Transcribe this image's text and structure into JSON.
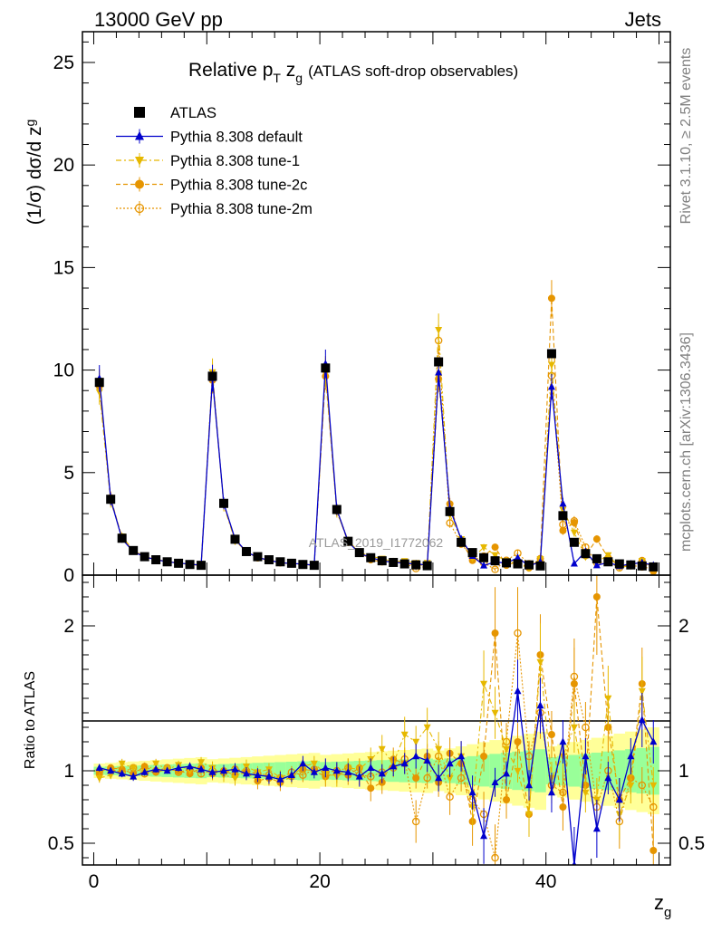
{
  "header": {
    "energy": "13000 GeV pp",
    "category": "Jets"
  },
  "plot": {
    "title_main": "Relative p",
    "title_sub1": "T",
    "title_mid": " z",
    "title_sub2": "g",
    "title_suffix": "(ATLAS soft-drop observables)",
    "ylabel_top": "(1/σ) dσ/d z",
    "ylabel_top_sub": "g",
    "ylabel_bottom": "Ratio to ATLAS",
    "xlabel": "z",
    "xlabel_sub": "g",
    "watermark": "ATLAS_2019_I1772062",
    "side_right_top": "Rivet 3.1.10, ≥ 2.5M events",
    "side_right_bottom": "mcplots.cern.ch [arXiv:1306.3436]"
  },
  "legend": [
    {
      "label": "ATLAS",
      "color": "#000000",
      "marker": "square"
    },
    {
      "label": "Pythia 8.308 default",
      "color": "#0000cc",
      "marker": "triangle-up"
    },
    {
      "label": "Pythia 8.308 tune-1",
      "color": "#e6b800",
      "marker": "triangle-down"
    },
    {
      "label": "Pythia 8.308 tune-2c",
      "color": "#e69500",
      "marker": "circle"
    },
    {
      "label": "Pythia 8.308 tune-2m",
      "color": "#e69500",
      "marker": "circle-open"
    }
  ],
  "chart_data": {
    "type": "scatter",
    "x": [
      0.5,
      1.5,
      2.5,
      3.5,
      4.5,
      5.5,
      6.5,
      7.5,
      8.5,
      9.5,
      10.5,
      11.5,
      12.5,
      13.5,
      14.5,
      15.5,
      16.5,
      17.5,
      18.5,
      19.5,
      20.5,
      21.5,
      22.5,
      23.5,
      24.5,
      25.5,
      26.5,
      27.5,
      28.5,
      29.5,
      30.5,
      31.5,
      32.5,
      33.5,
      34.5,
      35.5,
      36.5,
      37.5,
      38.5,
      39.5,
      40.5,
      41.5,
      42.5,
      43.5,
      44.5,
      45.5,
      46.5,
      47.5,
      48.5,
      49.5
    ],
    "xlim": [
      -1,
      51
    ],
    "top_ylim": [
      0,
      26.5
    ],
    "bottom_ylim": [
      0.35,
      2.35
    ],
    "xticks": [
      0,
      20,
      40
    ],
    "top_yticks": [
      0,
      5,
      10,
      15,
      20,
      25
    ],
    "bottom_yticks": [
      0.5,
      1,
      2
    ],
    "series": [
      {
        "name": "ATLAS",
        "values": [
          9.4,
          3.7,
          1.8,
          1.2,
          0.9,
          0.75,
          0.65,
          0.58,
          0.52,
          0.48,
          9.7,
          3.5,
          1.75,
          1.15,
          0.9,
          0.75,
          0.65,
          0.58,
          0.52,
          0.48,
          10.1,
          3.2,
          1.65,
          1.1,
          0.85,
          0.7,
          0.62,
          0.55,
          0.5,
          0.46,
          10.4,
          3.1,
          1.6,
          1.1,
          0.85,
          0.7,
          0.6,
          0.55,
          0.5,
          0.45,
          10.8,
          2.9,
          1.6,
          1.05,
          0.8,
          0.65,
          0.55,
          0.5,
          0.45,
          0.4
        ]
      },
      {
        "name": "Pythia 8.308 default",
        "ratio": [
          1.02,
          1.0,
          0.98,
          0.96,
          0.99,
          1.01,
          1.0,
          1.02,
          1.03,
          1.01,
          0.99,
          1.0,
          1.01,
          0.98,
          0.97,
          0.96,
          0.94,
          0.97,
          1.05,
          0.99,
          1.02,
          1.0,
          0.99,
          0.96,
          1.02,
          0.98,
          1.03,
          1.05,
          1.1,
          1.07,
          0.95,
          1.05,
          1.1,
          0.85,
          0.55,
          0.92,
          0.98,
          1.55,
          0.9,
          1.45,
          0.85,
          1.2,
          0.35,
          1.1,
          0.6,
          0.95,
          0.8,
          1.1,
          1.35,
          1.2
        ]
      },
      {
        "name": "Pythia 8.308 tune-1",
        "ratio": [
          0.95,
          0.97,
          1.05,
          1.02,
          0.99,
          1.05,
          1.01,
          1.04,
          1.0,
          1.06,
          1.02,
          0.97,
          0.95,
          1.03,
          0.99,
          1.01,
          0.95,
          0.96,
          1.03,
          1.05,
          0.98,
          0.96,
          1.02,
          1.01,
          1.08,
          1.15,
          1.05,
          1.25,
          1.2,
          1.3,
          1.15,
          0.95,
          1.1,
          0.75,
          1.6,
          1.4,
          1.15,
          1.0,
          0.7,
          1.75,
          0.95,
          1.1,
          1.3,
          0.85,
          0.8,
          1.5,
          0.7,
          0.9,
          1.55,
          0.9
        ]
      },
      {
        "name": "Pythia 8.308 tune-2c",
        "ratio": [
          0.98,
          1.02,
          1.01,
          0.98,
          1.03,
          0.99,
          1.01,
          1.0,
          0.98,
          1.02,
          0.98,
          1.0,
          0.97,
          0.99,
          0.93,
          0.95,
          0.92,
          0.96,
          1.01,
          1.0,
          0.96,
          0.98,
          0.97,
          1.02,
          0.88,
          0.92,
          1.08,
          1.05,
          0.95,
          1.1,
          0.92,
          1.12,
          1.05,
          0.65,
          1.1,
          1.95,
          0.8,
          1.2,
          0.7,
          1.8,
          1.25,
          0.75,
          1.6,
          0.9,
          2.2,
          1.3,
          0.8,
          0.95,
          1.6,
          0.45
        ]
      },
      {
        "name": "Pythia 8.308 tune-2m",
        "ratio": [
          1.0,
          1.01,
          0.99,
          1.02,
          0.98,
          1.0,
          1.02,
          0.99,
          1.01,
          0.98,
          1.0,
          0.99,
          1.01,
          1.0,
          0.98,
          0.97,
          0.95,
          0.99,
          0.97,
          1.01,
          0.99,
          1.0,
          1.02,
          0.97,
          0.96,
          0.99,
          1.02,
          1.08,
          0.65,
          0.95,
          1.1,
          0.82,
          0.95,
          0.8,
          0.7,
          0.4,
          1.2,
          1.95,
          1.1,
          1.4,
          0.9,
          0.85,
          1.65,
          1.3,
          0.75,
          1.0,
          0.65,
          0.95,
          0.9,
          0.75
        ]
      }
    ]
  }
}
